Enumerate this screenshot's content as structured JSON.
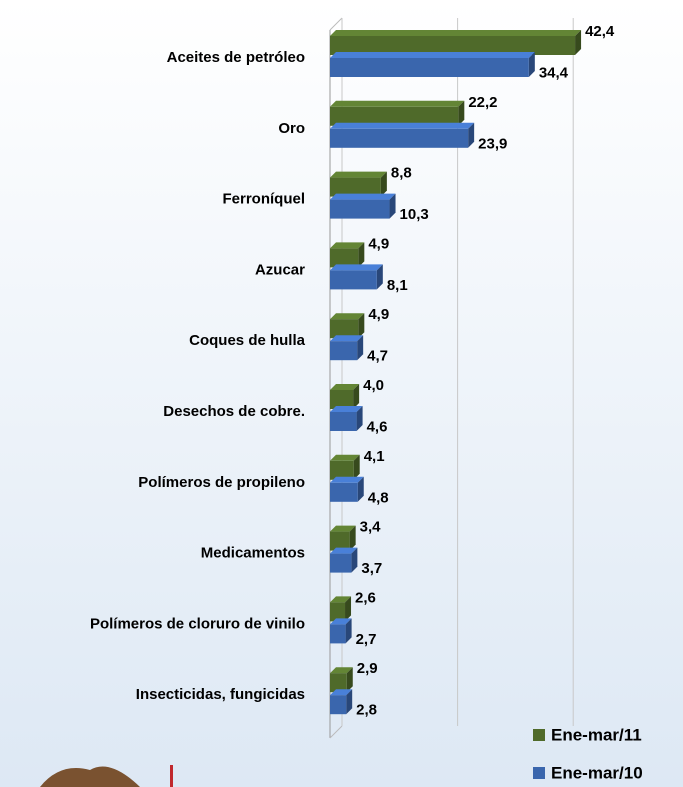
{
  "chart_data": {
    "type": "bar",
    "orientation": "horizontal",
    "categories": [
      "Aceites de petróleo",
      "Oro",
      "Ferroníquel",
      "Azucar",
      "Coques de hulla",
      "Desechos  de cobre.",
      "Polímeros de propileno",
      "Medicamentos",
      "Polímeros de cloruro de vinilo",
      "Insecticidas,  fungicidas"
    ],
    "series": [
      {
        "name": "Ene-mar/11",
        "color": "#4f6a2a",
        "values": [
          42.4,
          22.2,
          8.8,
          4.9,
          4.9,
          4.0,
          4.1,
          3.4,
          2.6,
          2.9
        ],
        "value_labels": [
          "42,4",
          "22,2",
          "8,8",
          "4,9",
          "4,9",
          "4,0",
          "4,1",
          "3,4",
          "2,6",
          "2,9"
        ]
      },
      {
        "name": "Ene-mar/10",
        "color": "#3a66ad",
        "values": [
          34.4,
          23.9,
          10.3,
          8.1,
          4.7,
          4.6,
          4.8,
          3.7,
          2.7,
          2.8
        ],
        "value_labels": [
          "34,4",
          "23,9",
          "10,3",
          "8,1",
          "4,7",
          "4,6",
          "4,8",
          "3,7",
          "2,7",
          "2,8"
        ]
      }
    ],
    "xlim": [
      0,
      60
    ],
    "xticks": [
      0,
      20,
      40,
      60
    ],
    "grid": true,
    "legend": "bottom-right"
  }
}
